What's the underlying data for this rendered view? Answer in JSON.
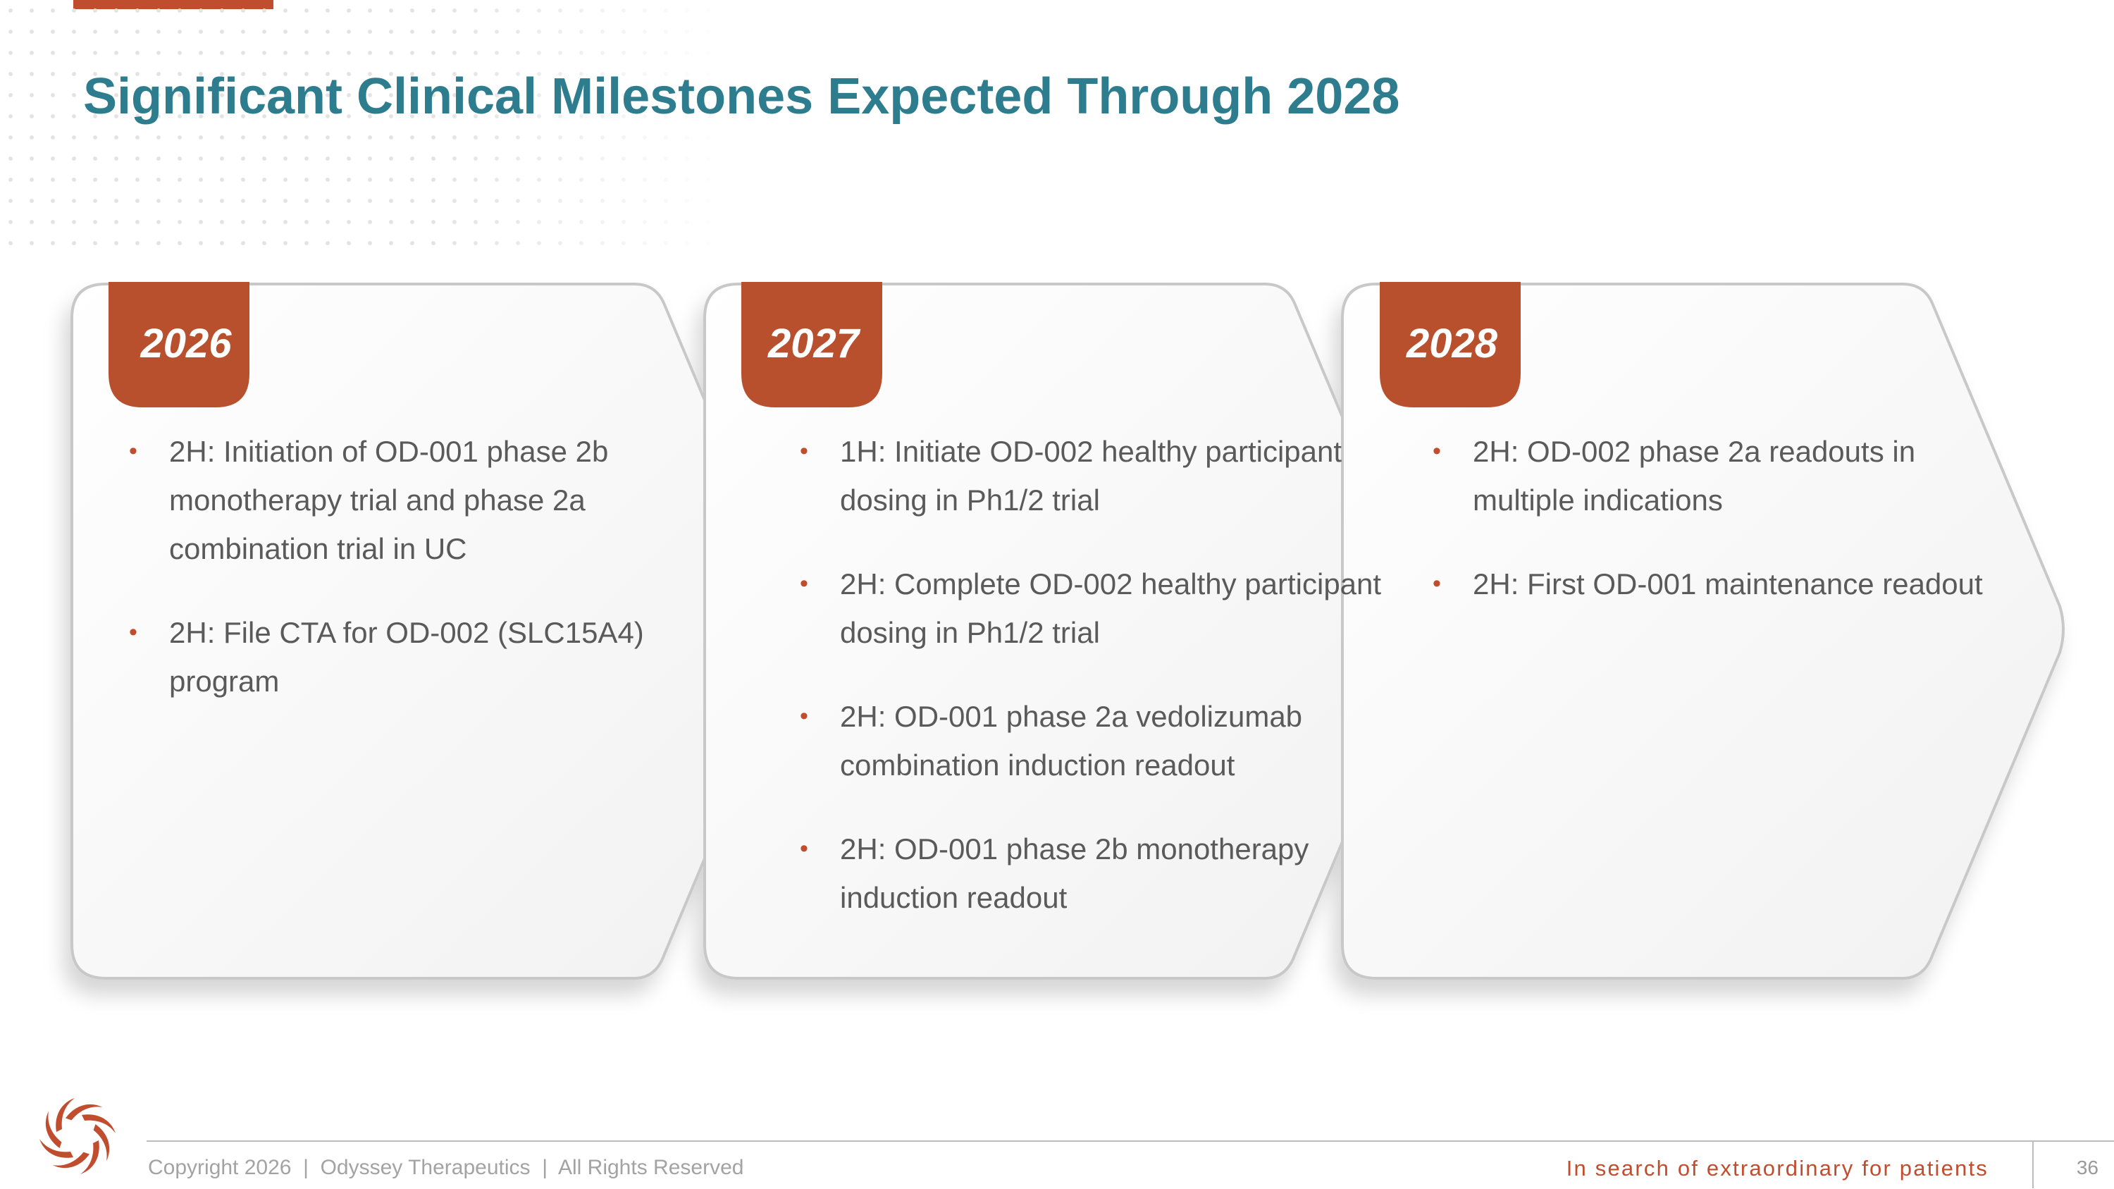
{
  "title": "Significant Clinical Milestones Expected Through 2028",
  "colors": {
    "accent": "#c04e2e",
    "title": "#2e7d8e",
    "body_text": "#5a5a5a",
    "footer_text": "#a3a3a3"
  },
  "milestones": [
    {
      "year": "2026",
      "items": [
        "2H: Initiation of OD-001 phase 2b monotherapy trial and phase 2a combination trial in UC",
        "2H: File CTA for OD-002 (SLC15A4) program"
      ]
    },
    {
      "year": "2027",
      "items": [
        "1H: Initiate OD-002 healthy participant dosing in Ph1/2 trial",
        "2H: Complete OD-002 healthy participant dosing in Ph1/2 trial",
        "2H: OD-001 phase 2a vedolizumab combination induction readout",
        "2H: OD-001 phase 2b monotherapy induction readout"
      ]
    },
    {
      "year": "2028",
      "items": [
        "2H: OD-002 phase 2a readouts in multiple indications",
        "2H: First OD-001 maintenance readout"
      ]
    }
  ],
  "footer": {
    "copyright": "Copyright 2026  |  Odyssey Therapeutics  |  All Rights Reserved",
    "tagline": "In search of extraordinary for patients",
    "page_number": "36"
  },
  "icons": {
    "logo": "swirl-logo-icon",
    "bullet": "bullet-dot-icon"
  }
}
